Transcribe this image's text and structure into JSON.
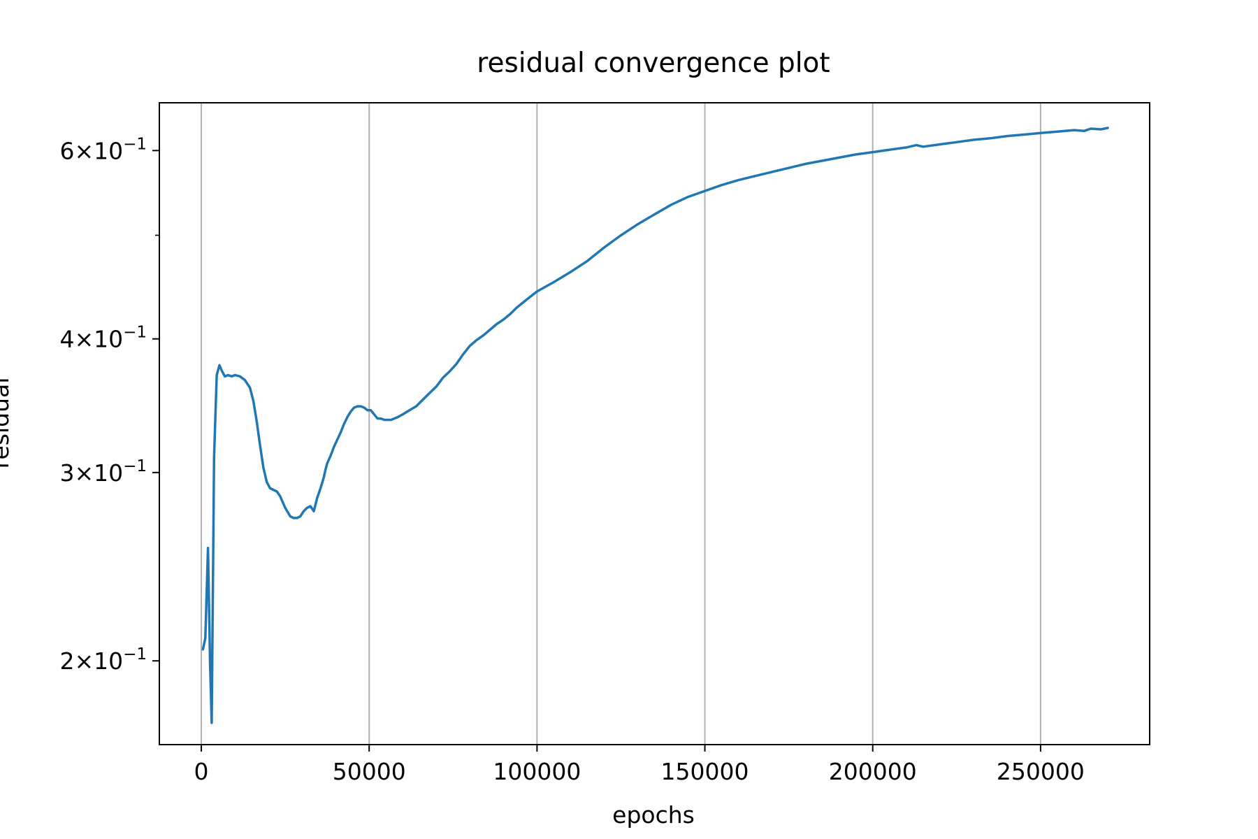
{
  "chart_data": {
    "type": "line",
    "title": "residual convergence plot",
    "xlabel": "epochs",
    "ylabel": "residual",
    "x_scale": "linear",
    "y_scale": "log",
    "xlim": [
      -12500,
      282500
    ],
    "ylim": [
      0.167,
      0.665
    ],
    "grid": "vertical",
    "line_color": "#1f77b4",
    "x_ticks": [
      {
        "value": 0,
        "label": "0"
      },
      {
        "value": 50000,
        "label": "50000"
      },
      {
        "value": 100000,
        "label": "100000"
      },
      {
        "value": 150000,
        "label": "150000"
      },
      {
        "value": 200000,
        "label": "200000"
      },
      {
        "value": 250000,
        "label": "250000"
      }
    ],
    "y_ticks": [
      {
        "value": 0.2,
        "base": "2",
        "exp": "−1"
      },
      {
        "value": 0.3,
        "base": "3",
        "exp": "−1"
      },
      {
        "value": 0.4,
        "base": "4",
        "exp": "−1"
      },
      {
        "value": 0.6,
        "base": "6",
        "exp": "−1"
      }
    ],
    "y_minor_ticks": [
      0.5
    ],
    "series": [
      {
        "x": [
          500,
          1200,
          2000,
          2600,
          3100,
          3800,
          4600,
          5400,
          6200,
          7000,
          8000,
          9000,
          10000,
          11500,
          13000,
          14500,
          15500,
          16500,
          17500,
          18500,
          19500,
          20500,
          21500,
          22500,
          23500,
          25000,
          26500,
          27500,
          28500,
          29500,
          30500,
          31500,
          32500,
          33500,
          34500,
          35500,
          36500,
          37000,
          37500,
          38500,
          39500,
          40500,
          41500,
          42500,
          43500,
          44500,
          45500,
          46500,
          47500,
          48500,
          49500,
          50500,
          51500,
          52500,
          53500,
          54500,
          55500,
          56500,
          57500,
          58500,
          60000,
          62000,
          64000,
          66000,
          68000,
          70000,
          72000,
          74000,
          76000,
          78000,
          80000,
          82000,
          84000,
          86000,
          88000,
          90000,
          92000,
          94000,
          96000,
          98000,
          100000,
          105000,
          110000,
          115000,
          120000,
          125000,
          130000,
          135000,
          140000,
          145000,
          150000,
          155000,
          160000,
          165000,
          170000,
          175000,
          180000,
          185000,
          190000,
          195000,
          200000,
          205000,
          210000,
          213000,
          215000,
          220000,
          225000,
          230000,
          235000,
          240000,
          245000,
          250000,
          255000,
          260000,
          263000,
          265000,
          268000,
          270000
        ],
        "y": [
          0.205,
          0.21,
          0.255,
          0.2,
          0.175,
          0.31,
          0.37,
          0.378,
          0.373,
          0.369,
          0.37,
          0.369,
          0.37,
          0.369,
          0.366,
          0.36,
          0.35,
          0.335,
          0.318,
          0.303,
          0.294,
          0.29,
          0.289,
          0.288,
          0.285,
          0.278,
          0.273,
          0.272,
          0.272,
          0.273,
          0.276,
          0.278,
          0.279,
          0.276,
          0.284,
          0.29,
          0.297,
          0.302,
          0.306,
          0.311,
          0.317,
          0.322,
          0.327,
          0.333,
          0.338,
          0.342,
          0.345,
          0.346,
          0.346,
          0.345,
          0.343,
          0.343,
          0.34,
          0.337,
          0.337,
          0.336,
          0.336,
          0.336,
          0.337,
          0.338,
          0.34,
          0.343,
          0.346,
          0.351,
          0.356,
          0.361,
          0.368,
          0.373,
          0.379,
          0.387,
          0.394,
          0.399,
          0.403,
          0.408,
          0.413,
          0.417,
          0.422,
          0.428,
          0.433,
          0.438,
          0.443,
          0.452,
          0.462,
          0.473,
          0.487,
          0.5,
          0.512,
          0.523,
          0.534,
          0.543,
          0.55,
          0.557,
          0.563,
          0.568,
          0.573,
          0.578,
          0.583,
          0.587,
          0.591,
          0.595,
          0.598,
          0.601,
          0.604,
          0.607,
          0.605,
          0.608,
          0.611,
          0.614,
          0.616,
          0.619,
          0.621,
          0.623,
          0.625,
          0.627,
          0.626,
          0.629,
          0.628,
          0.63
        ]
      }
    ]
  }
}
